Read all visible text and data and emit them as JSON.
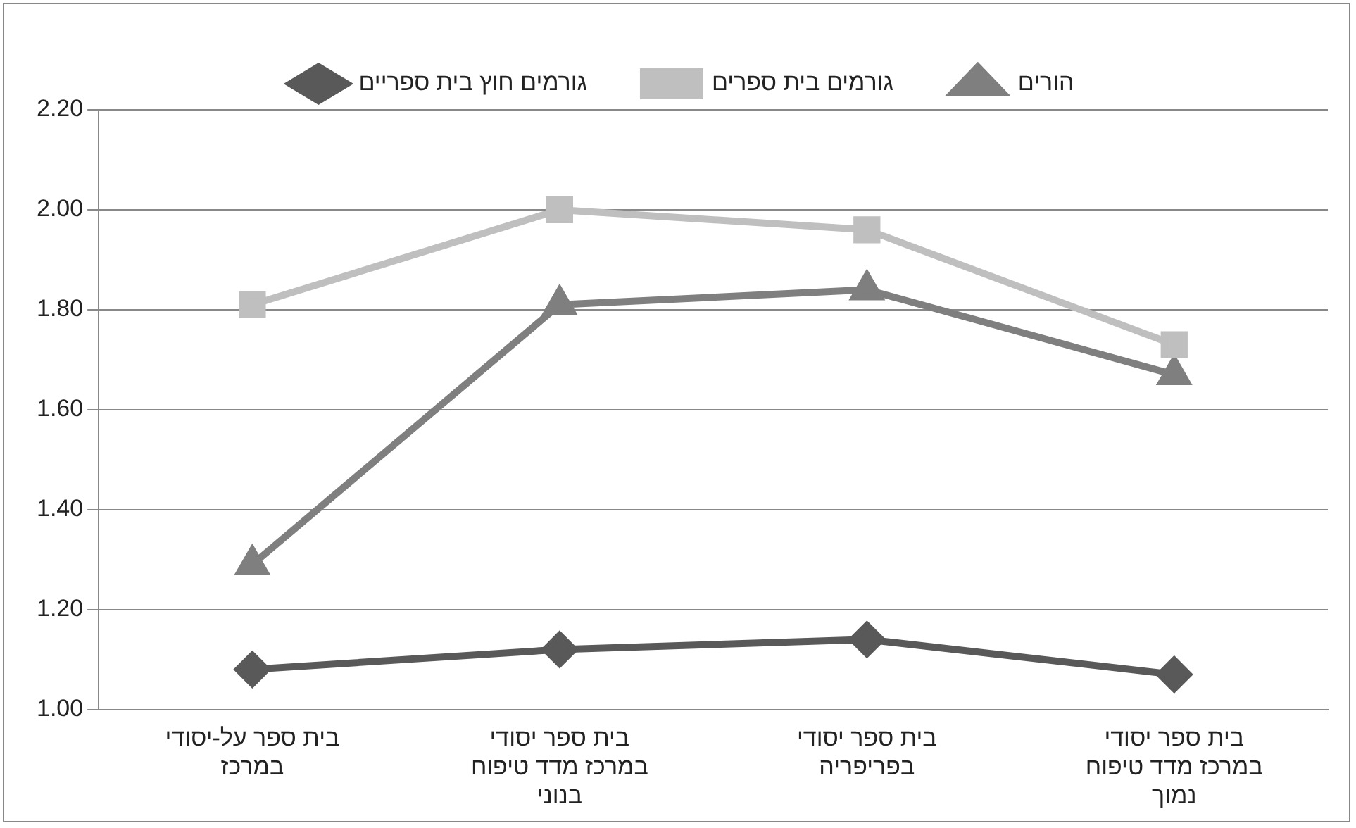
{
  "chart_data": {
    "type": "line",
    "categories": [
      "בית ספר על-יסודי במרכז",
      "בית ספר יסודי במרכז מדד טיפוח בנוני",
      "בית ספר יסודי בפריפריה",
      "בית ספר יסודי במרכז מדד טיפוח נמוך"
    ],
    "series": [
      {
        "name": "גורמים חוץ בית ספריים",
        "color": "#595959",
        "marker": "diamond",
        "values": [
          1.08,
          1.12,
          1.14,
          1.07
        ]
      },
      {
        "name": "גורמים בית ספרים",
        "color": "#bfbfbf",
        "marker": "square",
        "values": [
          1.81,
          2.0,
          1.96,
          1.73
        ]
      },
      {
        "name": "הורים",
        "color": "#7f7f7f",
        "marker": "triangle",
        "values": [
          1.29,
          1.81,
          1.84,
          1.67
        ]
      }
    ],
    "ylim": [
      1.0,
      2.2
    ],
    "yticks": [
      {
        "value": 1.0,
        "label": "1.00"
      },
      {
        "value": 1.2,
        "label": "1.20"
      },
      {
        "value": 1.4,
        "label": "1.40"
      },
      {
        "value": 1.6,
        "label": "1.60"
      },
      {
        "value": 1.8,
        "label": "1.80"
      },
      {
        "value": 2.0,
        "label": "2.00"
      },
      {
        "value": 2.2,
        "label": "2.20"
      }
    ],
    "grid": "y",
    "legend": "top",
    "line_style": "solid"
  }
}
